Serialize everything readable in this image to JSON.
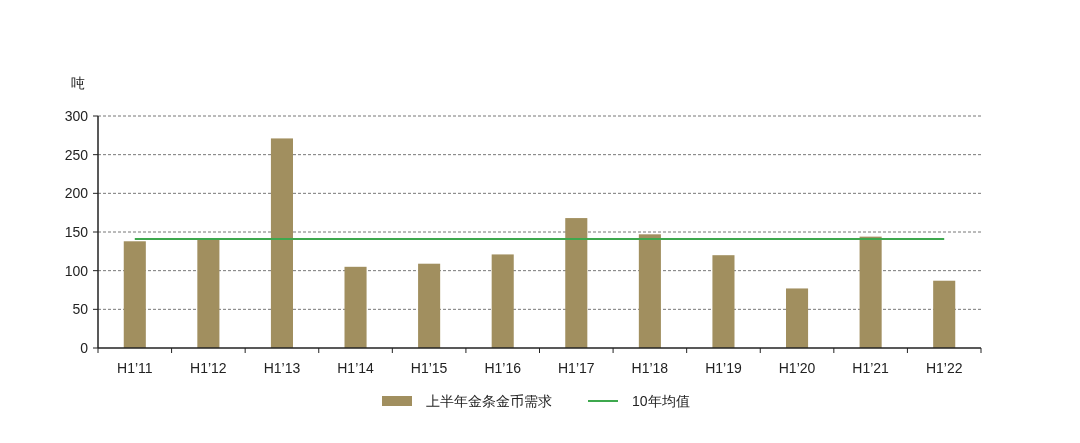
{
  "chart_data": {
    "type": "bar",
    "ylabel": "吨",
    "categories": [
      "H1’11",
      "H1’12",
      "H1’13",
      "H1’14",
      "H1’15",
      "H1’16",
      "H1’17",
      "H1’18",
      "H1’19",
      "H1’20",
      "H1’21",
      "H1’22"
    ],
    "series": [
      {
        "name": "上半年金条金币需求",
        "color": "#a18f5f",
        "values": [
          138,
          141,
          271,
          105,
          109,
          121,
          168,
          147,
          120,
          77,
          144,
          87
        ]
      },
      {
        "name": "10年均值",
        "type": "line",
        "color": "#3ea84e",
        "values": [
          141,
          141,
          141,
          141,
          141,
          141,
          141,
          141,
          141,
          141,
          141,
          141
        ]
      }
    ],
    "ylim": [
      0,
      300
    ],
    "yticks": [
      0,
      50,
      100,
      150,
      200,
      250,
      300
    ],
    "grid": "y",
    "legend": "bottom",
    "marker": "none"
  }
}
